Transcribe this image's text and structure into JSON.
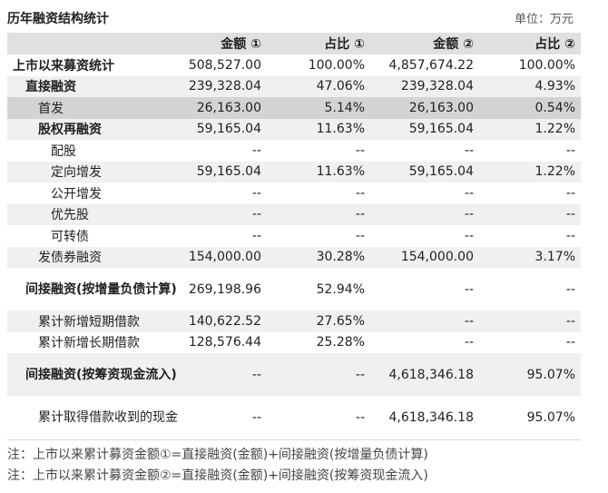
{
  "header": {
    "title": "历年融资结构统计",
    "unit": "单位：万元"
  },
  "columns": [
    "",
    "金额 ①",
    "占比 ①",
    "金额 ②",
    "占比 ②"
  ],
  "rows": [
    {
      "label": "上市以来募资统计",
      "v1": "508,527.00",
      "p1": "100.00%",
      "v2": "4,857,674.22",
      "p2": "100.00%"
    },
    {
      "label": "直接融资",
      "v1": "239,328.04",
      "p1": "47.06%",
      "v2": "239,328.04",
      "p2": "4.93%"
    },
    {
      "label": "首发",
      "v1": "26,163.00",
      "p1": "5.14%",
      "v2": "26,163.00",
      "p2": "0.54%"
    },
    {
      "label": "股权再融资",
      "v1": "59,165.04",
      "p1": "11.63%",
      "v2": "59,165.04",
      "p2": "1.22%"
    },
    {
      "label": "配股",
      "v1": "--",
      "p1": "--",
      "v2": "--",
      "p2": "--"
    },
    {
      "label": "定向增发",
      "v1": "59,165.04",
      "p1": "11.63%",
      "v2": "59,165.04",
      "p2": "1.22%"
    },
    {
      "label": "公开增发",
      "v1": "--",
      "p1": "--",
      "v2": "--",
      "p2": "--"
    },
    {
      "label": "优先股",
      "v1": "--",
      "p1": "--",
      "v2": "--",
      "p2": "--"
    },
    {
      "label": "可转债",
      "v1": "--",
      "p1": "--",
      "v2": "--",
      "p2": "--"
    },
    {
      "label": "发债券融资",
      "v1": "154,000.00",
      "p1": "30.28%",
      "v2": "154,000.00",
      "p2": "3.17%"
    },
    {
      "label": "间接融资(按增量负债计算)",
      "v1": "269,198.96",
      "p1": "52.94%",
      "v2": "--",
      "p2": "--"
    },
    {
      "label": "累计新增短期借款",
      "v1": "140,622.52",
      "p1": "27.65%",
      "v2": "--",
      "p2": "--"
    },
    {
      "label": "累计新增长期借款",
      "v1": "128,576.44",
      "p1": "25.28%",
      "v2": "--",
      "p2": "--"
    },
    {
      "label": "间接融资(按筹资现金流入)",
      "v1": "--",
      "p1": "--",
      "v2": "4,618,346.18",
      "p2": "95.07%"
    },
    {
      "label": "累计取得借款收到的现金",
      "v1": "--",
      "p1": "--",
      "v2": "4,618,346.18",
      "p2": "95.07%"
    }
  ],
  "notes": [
    "注：上市以来累计募资金额①=直接融资(金额)+间接融资(按增量负债计算)",
    "注：上市以来累计募资金额②=直接融资(金额)+间接融资(按筹资现金流入)"
  ]
}
